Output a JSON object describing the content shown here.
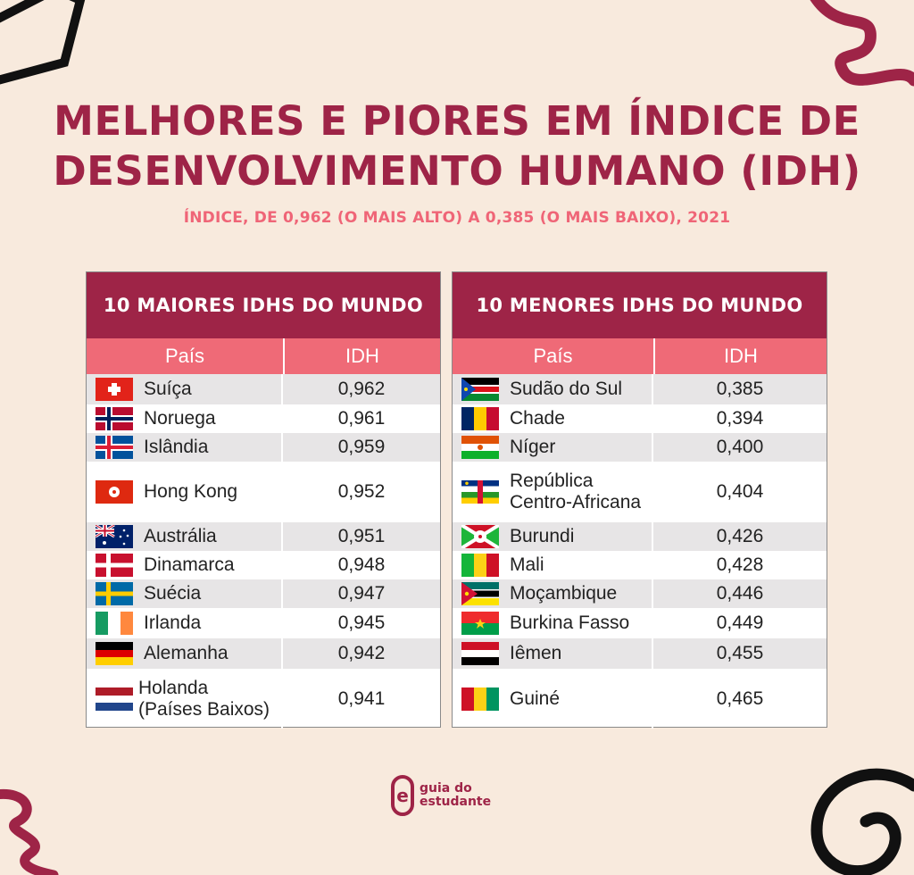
{
  "title_line1": "MELHORES E PIORES EM ÍNDICE DE",
  "title_line2": "DESENVOLVIMENTO HUMANO (IDH)",
  "subtitle": "ÍNDICE, DE 0,962 (O MAIS ALTO) A 0,385 (O MAIS BAIXO), 2021",
  "colors": {
    "accent": "#9e2447",
    "header_pink": "#ef6a77",
    "background": "#f8eadd"
  },
  "top": {
    "heading": "10 MAIORES IDHS DO MUNDO",
    "col_country": "País",
    "col_idh": "IDH",
    "rows": [
      {
        "country": "Suíça",
        "idh": "0,962",
        "flag": "switzerland-flag-icon"
      },
      {
        "country": "Noruega",
        "idh": "0,961",
        "flag": "norway-flag-icon"
      },
      {
        "country": "Islândia",
        "idh": "0,959",
        "flag": "iceland-flag-icon"
      },
      {
        "country": "Hong Kong",
        "idh": "0,952",
        "flag": "hong-kong-flag-icon"
      },
      {
        "country": "Austrália",
        "idh": "0,951",
        "flag": "australia-flag-icon"
      },
      {
        "country": "Dinamarca",
        "idh": "0,948",
        "flag": "denmark-flag-icon"
      },
      {
        "country": "Suécia",
        "idh": "0,947",
        "flag": "sweden-flag-icon"
      },
      {
        "country": "Irlanda",
        "idh": "0,945",
        "flag": "ireland-flag-icon"
      },
      {
        "country": "Alemanha",
        "idh": "0,942",
        "flag": "germany-flag-icon"
      },
      {
        "country": "Holanda",
        "country_line2": "(Países Baixos)",
        "idh": "0,941",
        "flag": "netherlands-flag-icon"
      }
    ]
  },
  "bottom": {
    "heading": "10 MENORES IDHS DO MUNDO",
    "col_country": "País",
    "col_idh": "IDH",
    "rows": [
      {
        "country": "Sudão do Sul",
        "idh": "0,385",
        "flag": "south-sudan-flag-icon"
      },
      {
        "country": "Chade",
        "idh": "0,394",
        "flag": "chad-flag-icon"
      },
      {
        "country": "Níger",
        "idh": "0,400",
        "flag": "niger-flag-icon"
      },
      {
        "country": "República",
        "country_line2": "Centro-Africana",
        "idh": "0,404",
        "flag": "central-african-republic-flag-icon"
      },
      {
        "country": "Burundi",
        "idh": "0,426",
        "flag": "burundi-flag-icon"
      },
      {
        "country": "Mali",
        "idh": "0,428",
        "flag": "mali-flag-icon"
      },
      {
        "country": "Moçambique",
        "idh": "0,446",
        "flag": "mozambique-flag-icon"
      },
      {
        "country": "Burkina Fasso",
        "idh": "0,449",
        "flag": "burkina-faso-flag-icon"
      },
      {
        "country": "Iêmen",
        "idh": "0,455",
        "flag": "yemen-flag-icon"
      },
      {
        "country": "Guiné",
        "idh": "0,465",
        "flag": "guinea-flag-icon"
      }
    ]
  },
  "footer": {
    "logo_line1": "guia do",
    "logo_line2": "estudante",
    "logo_letter": "e"
  }
}
